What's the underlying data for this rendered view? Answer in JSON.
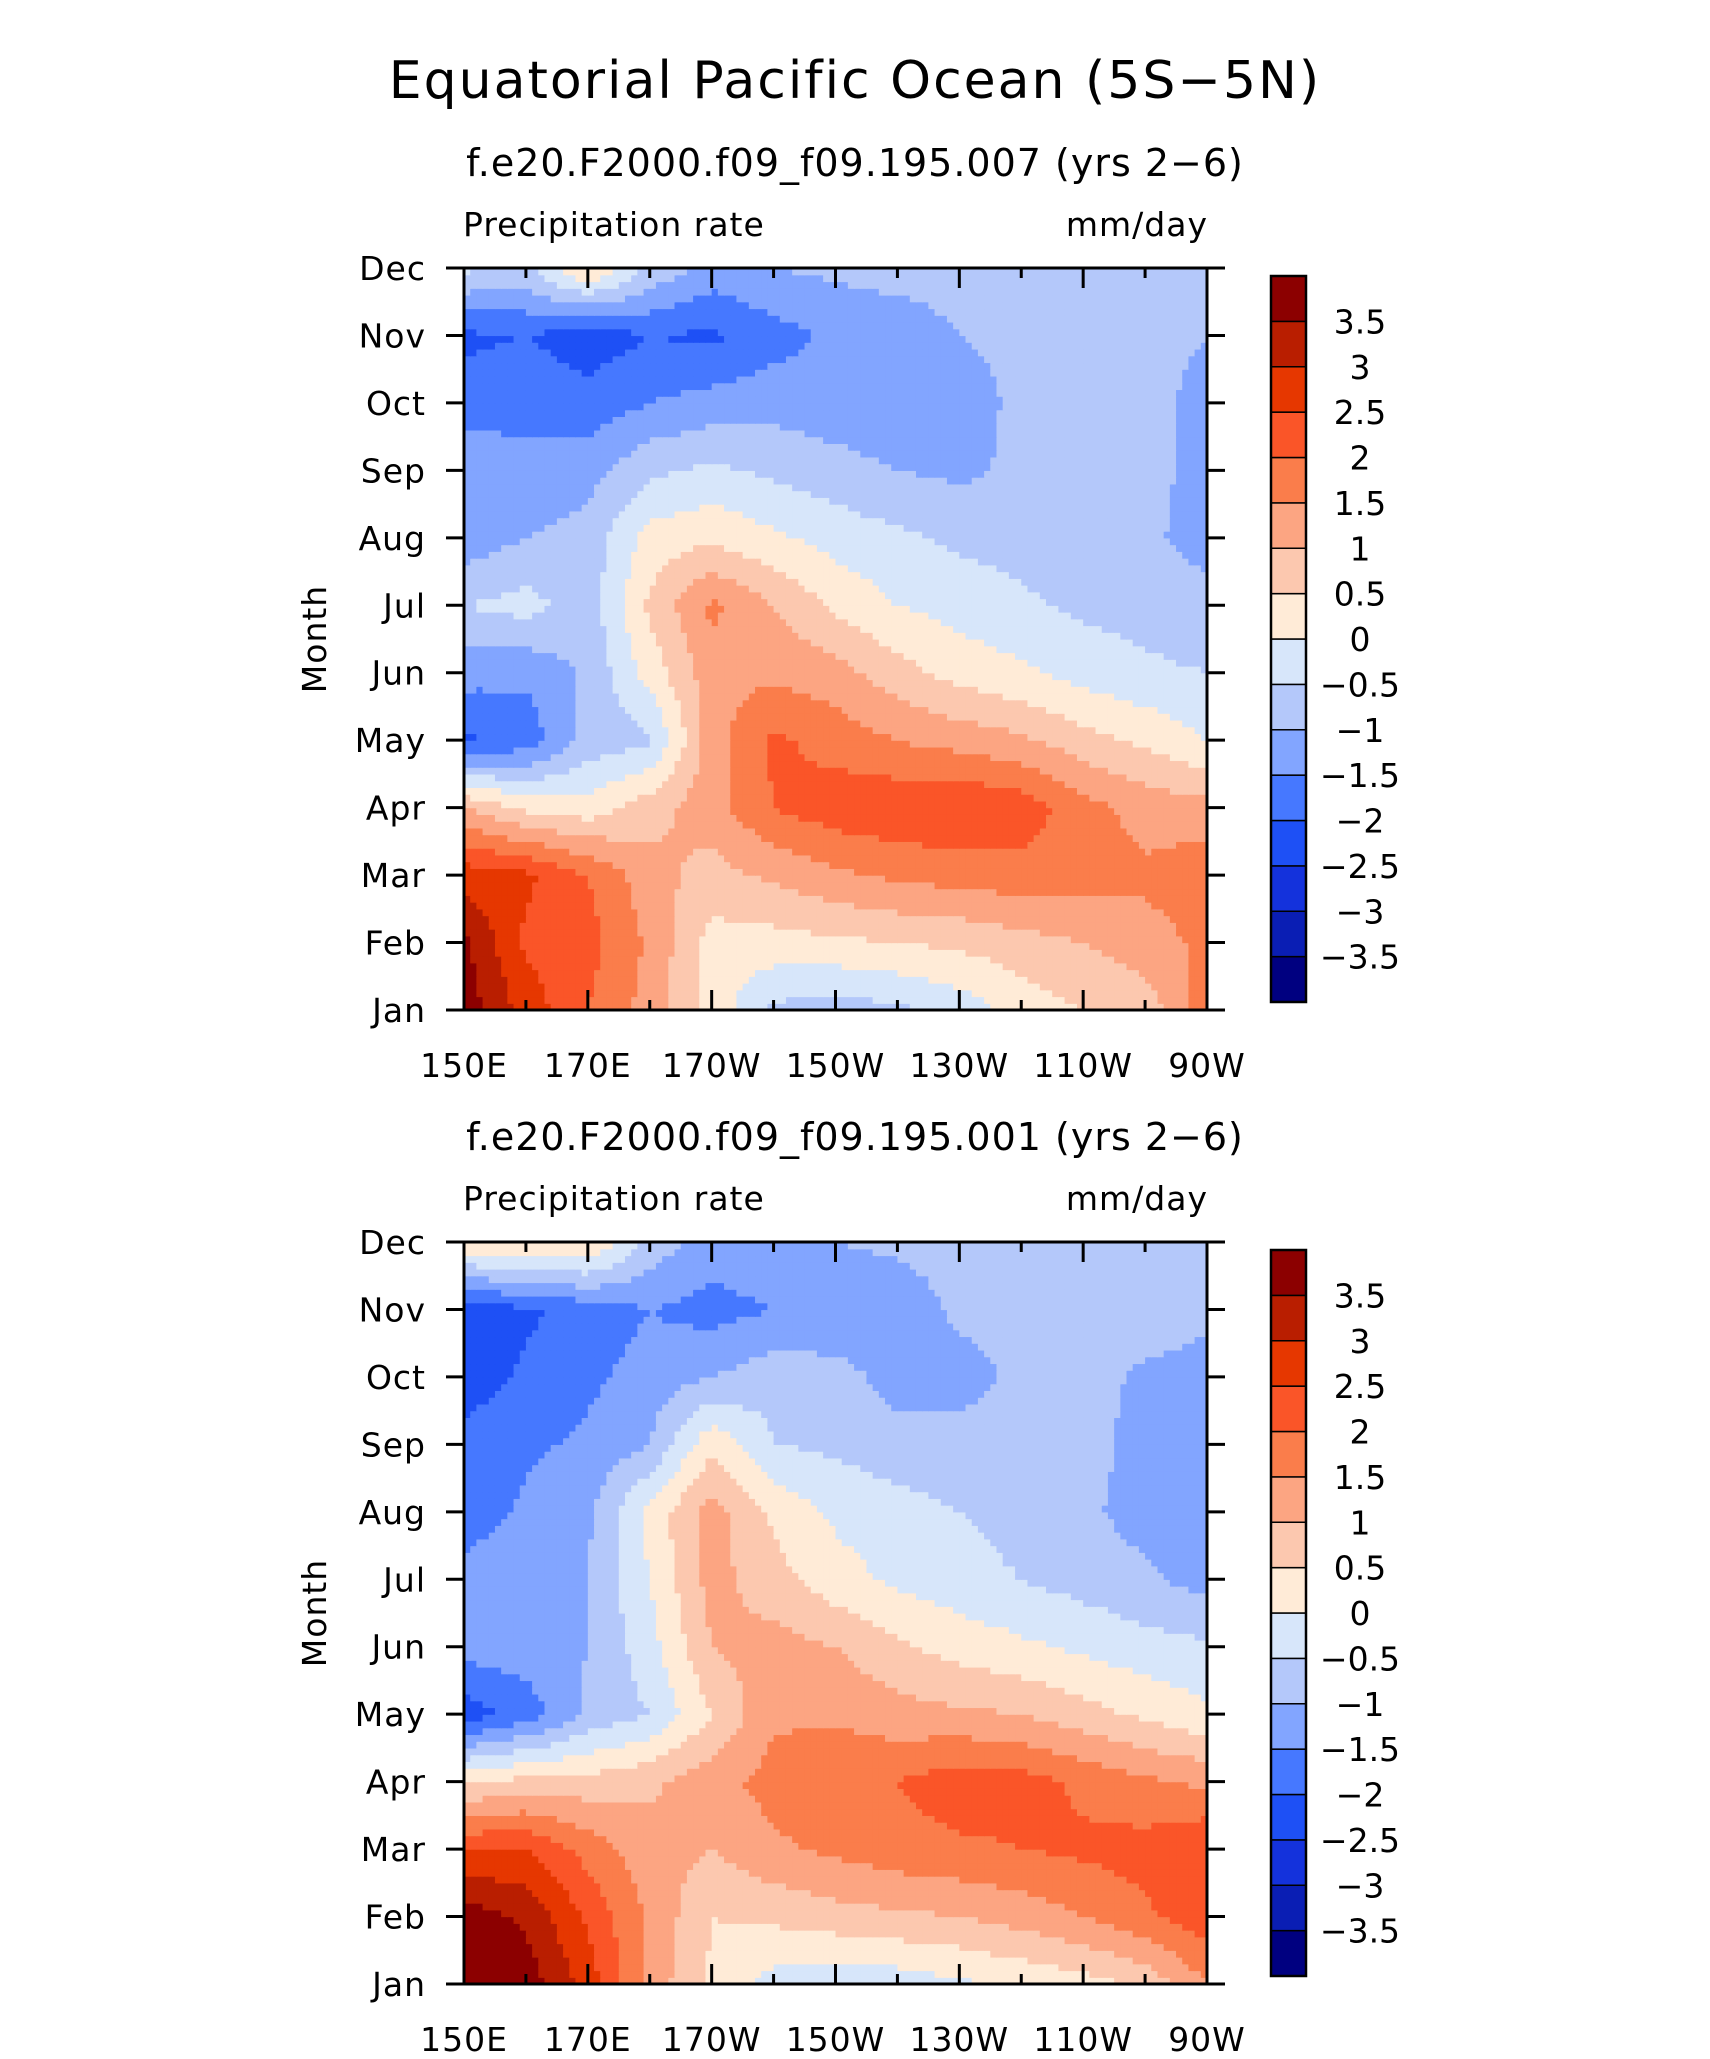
{
  "figure_title": "Equatorial Pacific Ocean (5S−5N)",
  "colorbar": {
    "levels": [
      -3.5,
      -3,
      -2.5,
      -2,
      -1.5,
      -1,
      -0.5,
      0,
      0.5,
      1,
      1.5,
      2,
      2.5,
      3,
      3.5
    ],
    "level_labels": [
      "3.5",
      "3",
      "2.5",
      "2",
      "1.5",
      "1",
      "0.5",
      "0",
      "−0.5",
      "−1",
      "−1.5",
      "−2",
      "−2.5",
      "−3",
      "−3.5"
    ],
    "colors": [
      "#000080",
      "#0a1eb4",
      "#1432dc",
      "#1e50f5",
      "#4678ff",
      "#82a5ff",
      "#b4c8fa",
      "#d7e6fa",
      "#ffebd7",
      "#fcc8af",
      "#fca582",
      "#fa7d4b",
      "#fa5528",
      "#e63700",
      "#b91e00",
      "#8c0000"
    ]
  },
  "chart_data": [
    {
      "type": "heatmap",
      "title": "f.e20.F2000.f09_f09.195.007 (yrs 2−6)",
      "variable_label": "Precipitation rate",
      "units_label": "mm/day",
      "ylabel": "Month",
      "x_tick_labels": [
        "150E",
        "170E",
        "170W",
        "150W",
        "130W",
        "110W",
        "90W"
      ],
      "y_tick_labels": [
        "Jan",
        "Feb",
        "Mar",
        "Apr",
        "May",
        "Jun",
        "Jul",
        "Aug",
        "Sep",
        "Oct",
        "Nov",
        "Dec"
      ],
      "xlim_deg_east": [
        150,
        270
      ],
      "ylim": [
        1,
        12
      ],
      "x_deg_east": [
        150,
        160,
        170,
        180,
        190,
        200,
        210,
        220,
        230,
        240,
        250,
        260,
        270
      ],
      "months": [
        1,
        2,
        3,
        4,
        5,
        6,
        7,
        8,
        9,
        10,
        11,
        12
      ],
      "values_mm_per_day": [
        [
          3.8,
          2.8,
          2.0,
          1.3,
          0.3,
          -0.6,
          -0.8,
          -0.6,
          -0.3,
          0.2,
          0.5,
          0.7,
          1.8
        ],
        [
          3.6,
          2.4,
          2.2,
          1.4,
          0.3,
          0.3,
          0.4,
          0.5,
          0.6,
          0.8,
          1.0,
          1.3,
          1.6
        ],
        [
          2.8,
          2.6,
          2.0,
          1.2,
          0.8,
          1.1,
          1.4,
          1.6,
          1.7,
          1.8,
          1.7,
          1.6,
          1.8
        ],
        [
          1.0,
          0.4,
          0.2,
          0.8,
          1.3,
          2.0,
          2.3,
          2.4,
          2.5,
          2.3,
          1.7,
          1.3,
          1.2
        ],
        [
          -2.1,
          -1.8,
          -0.8,
          -0.6,
          1.3,
          2.1,
          1.8,
          1.5,
          1.3,
          1.1,
          0.7,
          0.4,
          0.0
        ],
        [
          -1.3,
          -1.4,
          -0.9,
          0.2,
          1.3,
          1.4,
          1.2,
          0.7,
          0.3,
          0.1,
          -0.2,
          -0.4,
          -0.5
        ],
        [
          -0.5,
          -0.3,
          -0.8,
          0.6,
          1.6,
          1.0,
          0.4,
          0.0,
          -0.2,
          -0.4,
          -0.6,
          -0.7,
          -0.8
        ],
        [
          -1.3,
          -1.0,
          -0.8,
          0.2,
          0.4,
          0.1,
          -0.2,
          -0.4,
          -0.6,
          -0.7,
          -0.8,
          -0.9,
          -1.2
        ],
        [
          -1.1,
          -1.4,
          -1.2,
          -0.6,
          -0.4,
          -0.6,
          -0.8,
          -1.0,
          -1.1,
          -0.9,
          -0.8,
          -0.9,
          -1.1
        ],
        [
          -1.8,
          -1.6,
          -1.8,
          -1.5,
          -1.3,
          -1.2,
          -1.3,
          -1.4,
          -1.2,
          -0.9,
          -0.8,
          -0.9,
          -1.1
        ],
        [
          -2.1,
          -2.0,
          -2.3,
          -2.0,
          -2.1,
          -1.7,
          -1.4,
          -1.3,
          -1.0,
          -0.9,
          -0.8,
          -0.9,
          -1.0
        ],
        [
          -0.4,
          -0.6,
          0.6,
          -0.6,
          -1.2,
          -1.0,
          -0.9,
          -0.8,
          -0.8,
          -0.7,
          -0.6,
          -0.5,
          -0.7
        ]
      ]
    },
    {
      "type": "heatmap",
      "title": "f.e20.F2000.f09_f09.195.001 (yrs 2−6)",
      "variable_label": "Precipitation rate",
      "units_label": "mm/day",
      "ylabel": "Month",
      "x_tick_labels": [
        "150E",
        "170E",
        "170W",
        "150W",
        "130W",
        "110W",
        "90W"
      ],
      "y_tick_labels": [
        "Jan",
        "Feb",
        "Mar",
        "Apr",
        "May",
        "Jun",
        "Jul",
        "Aug",
        "Sep",
        "Oct",
        "Nov",
        "Dec"
      ],
      "xlim_deg_east": [
        150,
        270
      ],
      "ylim": [
        1,
        12
      ],
      "x_deg_east": [
        150,
        160,
        170,
        180,
        190,
        200,
        210,
        220,
        230,
        240,
        250,
        260,
        270
      ],
      "months": [
        1,
        2,
        3,
        4,
        5,
        6,
        7,
        8,
        9,
        10,
        11,
        12
      ],
      "values_mm_per_day": [
        [
          4.0,
          3.8,
          2.8,
          1.3,
          0.4,
          -0.2,
          -0.4,
          -0.3,
          -0.1,
          0.1,
          0.3,
          0.6,
          1.5
        ],
        [
          3.8,
          3.4,
          2.4,
          1.4,
          0.5,
          0.6,
          0.8,
          0.9,
          1.0,
          1.2,
          1.5,
          1.9,
          2.3
        ],
        [
          2.5,
          2.5,
          1.8,
          1.2,
          1.0,
          1.4,
          1.6,
          1.8,
          1.9,
          2.0,
          2.1,
          2.2,
          2.5
        ],
        [
          0.4,
          0.7,
          0.7,
          0.9,
          1.3,
          1.7,
          2.0,
          2.0,
          2.3,
          2.2,
          1.9,
          1.6,
          1.4
        ],
        [
          -2.3,
          -1.8,
          -0.9,
          -0.5,
          0.5,
          1.4,
          1.4,
          1.2,
          1.1,
          1.0,
          0.7,
          0.4,
          0.1
        ],
        [
          -1.3,
          -1.2,
          -1.0,
          -0.2,
          1.0,
          1.2,
          1.0,
          0.6,
          0.3,
          0.1,
          -0.1,
          -0.3,
          -0.4
        ],
        [
          -1.3,
          -1.1,
          -1.0,
          0.0,
          1.2,
          0.7,
          0.2,
          -0.1,
          -0.3,
          -0.5,
          -0.7,
          -0.9,
          -1.2
        ],
        [
          -1.8,
          -1.4,
          -1.1,
          0.2,
          1.2,
          0.4,
          -0.1,
          -0.3,
          -0.5,
          -0.7,
          -0.9,
          -1.2,
          -1.3
        ],
        [
          -1.8,
          -1.6,
          -1.4,
          -1.0,
          0.4,
          -0.5,
          -0.6,
          -0.8,
          -0.8,
          -0.8,
          -0.8,
          -1.2,
          -1.3
        ],
        [
          -2.3,
          -1.9,
          -1.6,
          -1.3,
          -1.0,
          -0.7,
          -0.8,
          -1.2,
          -1.2,
          -0.9,
          -0.8,
          -1.1,
          -1.2
        ],
        [
          -2.3,
          -2.1,
          -1.8,
          -1.5,
          -1.7,
          -1.5,
          -1.4,
          -1.3,
          -0.9,
          -0.8,
          -0.7,
          -0.7,
          -0.9
        ],
        [
          0.4,
          0.6,
          0.6,
          -0.7,
          -1.2,
          -1.1,
          -1.0,
          -0.9,
          -0.8,
          -0.7,
          -0.6,
          -0.5,
          -0.6
        ]
      ]
    }
  ]
}
